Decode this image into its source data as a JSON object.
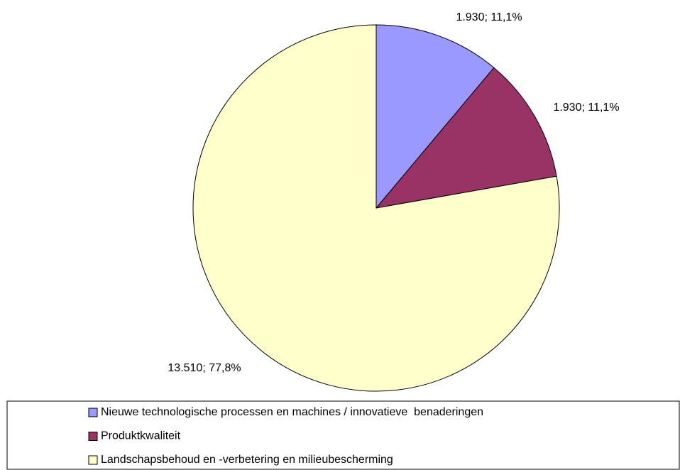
{
  "chart_data": {
    "type": "pie",
    "categories": [
      "Nieuwe technologische processen en machines / innovatieve  benaderingen",
      "Produktkwaliteit",
      "Landschapsbehoud en -verbetering en milieubescherming"
    ],
    "values": [
      1930,
      1930,
      13510
    ],
    "value_labels": [
      "1.930; 11,1%",
      "1.930; 11,1%",
      "13.510; 77,8%"
    ],
    "colors": [
      "#9999ff",
      "#993366",
      "#ffffcc"
    ],
    "legend": "bottom"
  }
}
